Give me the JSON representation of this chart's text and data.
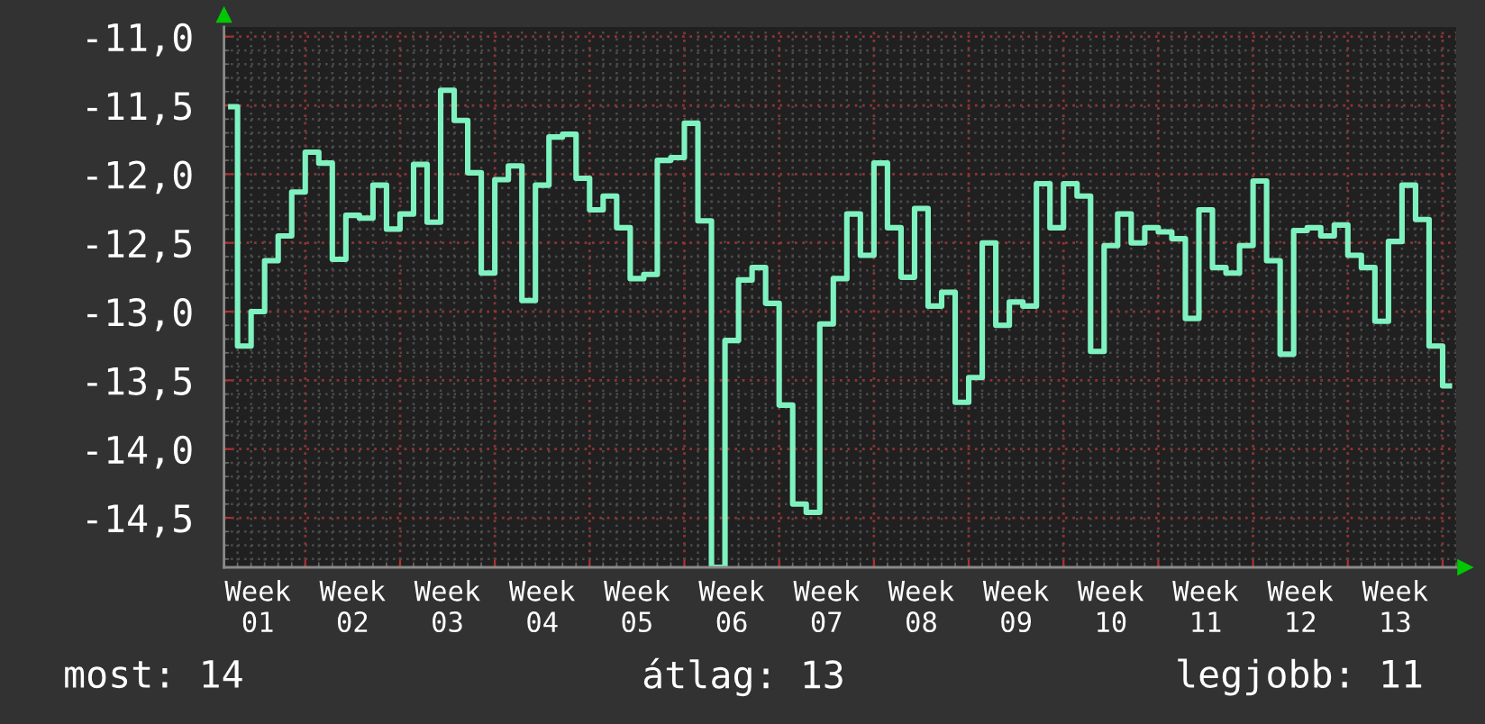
{
  "chart_data": {
    "type": "step",
    "categories": [
      null,
      null,
      "Week 01",
      null,
      null,
      null,
      null,
      null,
      null,
      "Week 02",
      null,
      null,
      null,
      null,
      null,
      null,
      "Week 03",
      null,
      null,
      null,
      null,
      null,
      null,
      "Week 04",
      null,
      null,
      null,
      null,
      null,
      null,
      "Week 05",
      null,
      null,
      null,
      null,
      null,
      null,
      "Week 06",
      null,
      null,
      null,
      null,
      null,
      null,
      "Week 07",
      null,
      null,
      null,
      null,
      null,
      null,
      "Week 08",
      null,
      null,
      null,
      null,
      null,
      null,
      "Week 09",
      null,
      null,
      null,
      null,
      null,
      null,
      "Week 10",
      null,
      null,
      null,
      null,
      null,
      null,
      "Week 11",
      null,
      null,
      null,
      null,
      null,
      null,
      "Week 12",
      null,
      null,
      null,
      null,
      null,
      null,
      "Week 13",
      null,
      null,
      null,
      null
    ],
    "values": [
      -11.51,
      -13.25,
      -13.0,
      -12.63,
      -12.45,
      -12.13,
      -11.84,
      -11.92,
      -12.62,
      -12.3,
      -12.32,
      -12.08,
      -12.4,
      -12.29,
      -11.93,
      -12.35,
      -11.39,
      -11.61,
      -11.99,
      -12.72,
      -12.04,
      -11.94,
      -12.92,
      -12.08,
      -11.73,
      -11.71,
      -12.03,
      -12.26,
      -12.16,
      -12.39,
      -12.76,
      -12.73,
      -11.9,
      -11.88,
      -11.63,
      -12.34,
      -14.86,
      -13.21,
      -12.77,
      -12.68,
      -12.94,
      -13.68,
      -14.4,
      -14.46,
      -13.09,
      -12.76,
      -12.29,
      -12.59,
      -11.92,
      -12.39,
      -12.75,
      -12.25,
      -12.96,
      -12.86,
      -13.66,
      -13.48,
      -12.5,
      -13.1,
      -12.93,
      -12.96,
      -12.07,
      -12.39,
      -12.07,
      -12.16,
      -13.29,
      -12.52,
      -12.29,
      -12.5,
      -12.39,
      -12.42,
      -12.47,
      -13.05,
      -12.26,
      -12.68,
      -12.72,
      -12.52,
      -12.05,
      -12.63,
      -13.31,
      -12.41,
      -12.39,
      -12.45,
      -12.37,
      -12.59,
      -12.68,
      -13.07,
      -12.49,
      -12.08,
      -12.33,
      -13.25,
      -13.54
    ],
    "color": "#7ff2c0",
    "ylim": [
      -14.86,
      -10.93
    ],
    "yticks": [
      {
        "value": -11,
        "label": "-11,0"
      },
      {
        "value": -11.5,
        "label": "-11,5"
      },
      {
        "value": -12,
        "label": "-12,0"
      },
      {
        "value": -12.5,
        "label": "-12,5"
      },
      {
        "value": -13,
        "label": "-13,0"
      },
      {
        "value": -13.5,
        "label": "-13,5"
      },
      {
        "value": -14,
        "label": "-14,0"
      },
      {
        "value": -14.5,
        "label": "-14,5"
      }
    ],
    "grid": true,
    "annotations": [
      "most: 14",
      "átlag: 13",
      "legjobb: 11"
    ]
  }
}
